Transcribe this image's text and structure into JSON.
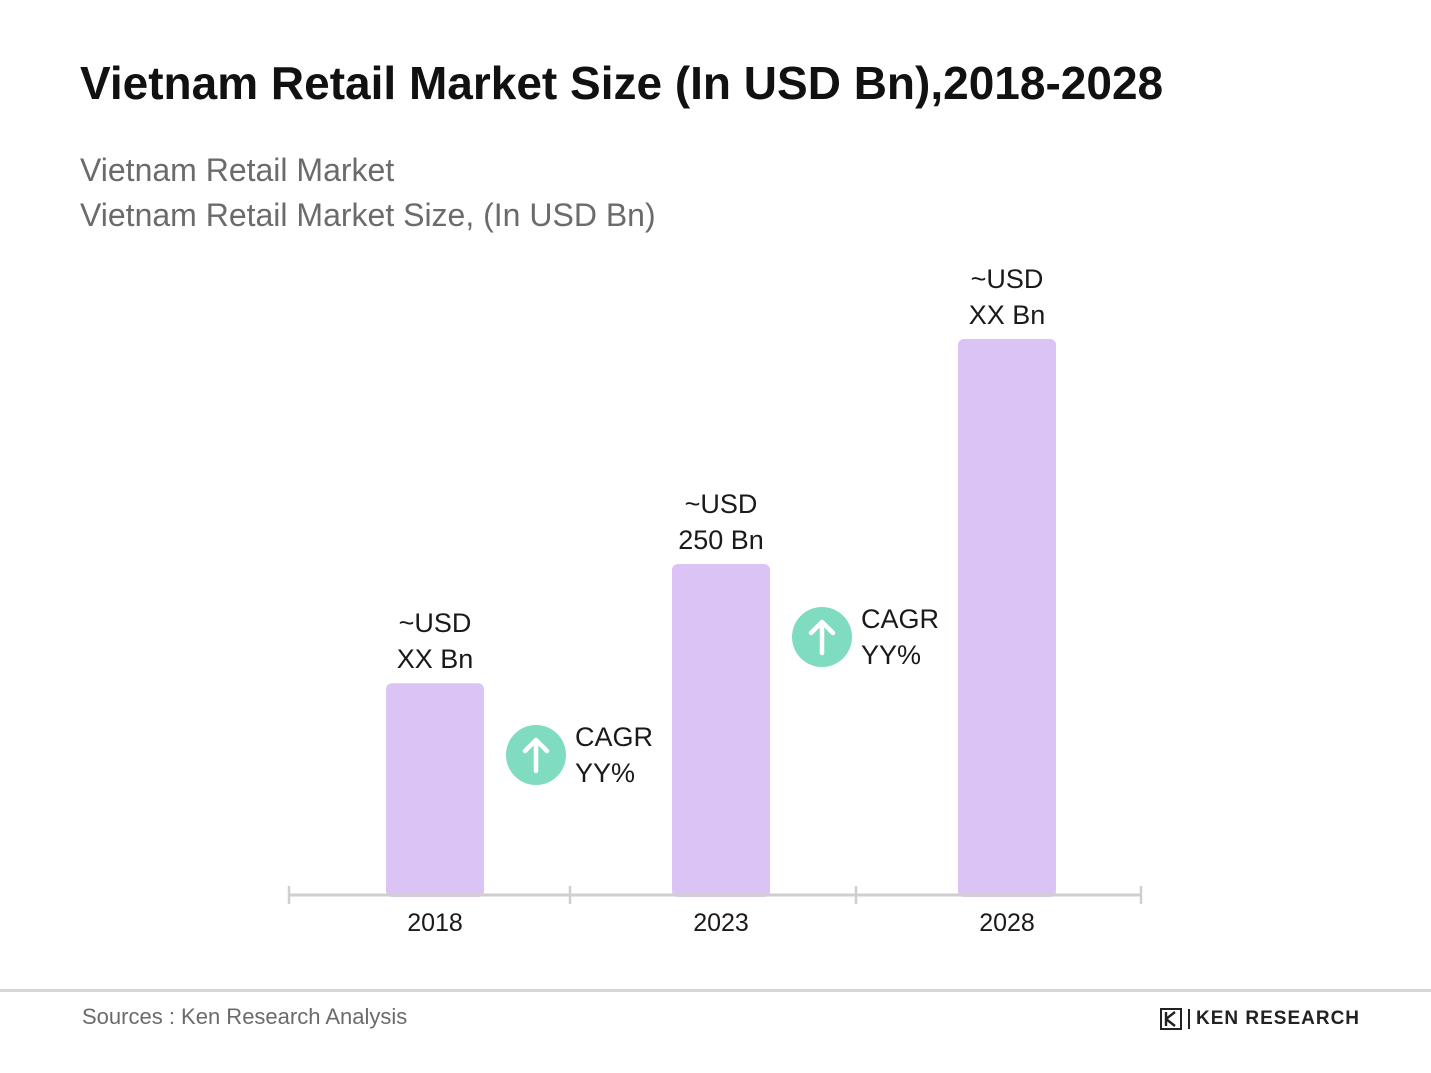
{
  "title": "Vietnam Retail Market Size (In USD Bn),2018-2028",
  "subtitle_line1": "Vietnam Retail Market",
  "subtitle_line2": "Vietnam Retail Market Size, (In USD Bn)",
  "source": "Sources : Ken Research Analysis",
  "logo": {
    "text": "KEN RESEARCH",
    "icon": "ken-research-k-logo"
  },
  "colors": {
    "bar": "#dcc3f5",
    "cagr_circle": "#7fdcc1",
    "axis": "#cfcfcf",
    "text": "#1a1a1a"
  },
  "chart_data": {
    "type": "bar",
    "categories": [
      "2018",
      "2023",
      "2028"
    ],
    "values": [
      160,
      250,
      420
    ],
    "value_labels": [
      [
        "~USD",
        "XX Bn"
      ],
      [
        "~USD",
        "250 Bn"
      ],
      [
        "~USD",
        "XX Bn"
      ]
    ],
    "cagr_annotations": [
      {
        "between": [
          "2018",
          "2023"
        ],
        "lines": [
          "CAGR",
          "YY%"
        ],
        "icon": "arrow-up-icon"
      },
      {
        "between": [
          "2023",
          "2028"
        ],
        "lines": [
          "CAGR",
          "YY%"
        ],
        "icon": "arrow-up-icon"
      }
    ],
    "grid": false,
    "legend": "none"
  }
}
